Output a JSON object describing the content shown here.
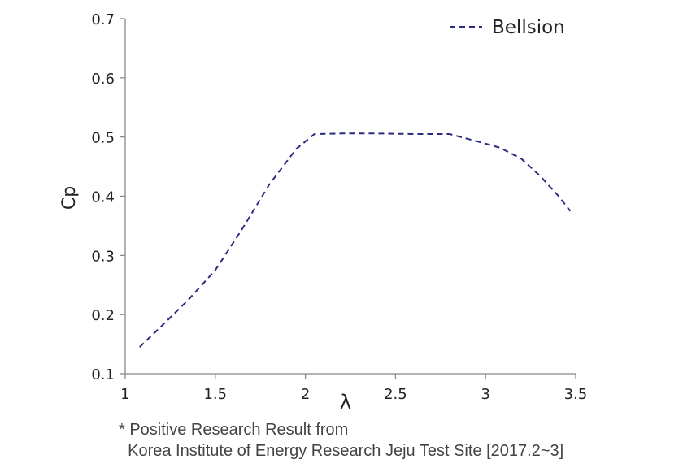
{
  "chart_data": {
    "type": "line",
    "title": "",
    "xlabel": "λ",
    "ylabel": "Cp",
    "xlim": [
      1,
      3.5
    ],
    "ylim": [
      0.1,
      0.7
    ],
    "x_ticks": [
      1,
      1.5,
      2,
      2.5,
      3,
      3.5
    ],
    "x_tick_labels": [
      "1",
      "1.5",
      "2",
      "2.5",
      "3",
      "3.5"
    ],
    "y_ticks": [
      0.1,
      0.2,
      0.3,
      0.4,
      0.5,
      0.6,
      0.7
    ],
    "y_tick_labels": [
      "0.1",
      "0.2",
      "0.3",
      "0.4",
      "0.5",
      "0.6",
      "0.7"
    ],
    "grid": false,
    "legend_position": "top-right",
    "series": [
      {
        "name": "Bellsion",
        "color": "#2b2b80",
        "line_style": "dashed",
        "x": [
          1.08,
          1.2,
          1.35,
          1.5,
          1.65,
          1.8,
          1.95,
          2.05,
          2.2,
          2.4,
          2.6,
          2.8,
          2.95,
          3.08,
          3.2,
          3.3,
          3.4,
          3.47
        ],
        "y": [
          0.145,
          0.18,
          0.225,
          0.275,
          0.345,
          0.42,
          0.48,
          0.505,
          0.506,
          0.506,
          0.505,
          0.505,
          0.493,
          0.482,
          0.463,
          0.435,
          0.402,
          0.375
        ]
      }
    ]
  },
  "footnote": {
    "line1": "* Positive Research Result from",
    "line2": "  Korea Institute of Energy Research Jeju Test Site [2017.2~3]"
  }
}
